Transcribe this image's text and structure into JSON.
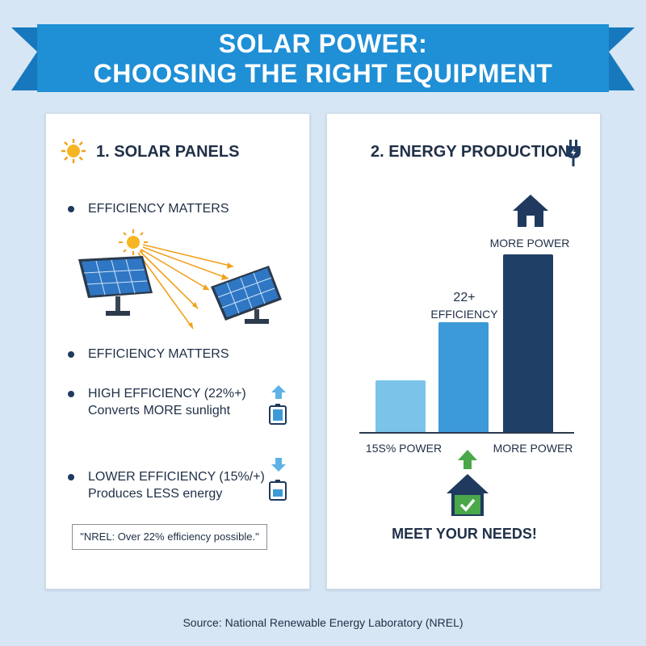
{
  "header": {
    "title_line1": "SOLAR POWER:",
    "title_line2": "CHOOSING THE RIGHT EQUIPMENT",
    "banner_color": "#1f8fd6"
  },
  "left_card": {
    "title": "1. SOLAR PANELS",
    "title_icon": "sun-icon",
    "bullet1": "EFFICIENCY MATTERS",
    "bullet2": "EFFICIENCY MATTERS",
    "bullet3_line1": "HIGH EFFICIENCY (22%+)",
    "bullet3_line2": "Converts MORE sunlight",
    "bullet3_icons": [
      "arrow-up-icon",
      "battery-full-icon"
    ],
    "bullet4_line1": "LOWER EFFICIENCY (15%/+)",
    "bullet4_line2": "Produces LESS energy",
    "bullet4_icons": [
      "arrow-down-icon",
      "battery-low-icon"
    ],
    "quote": "\"NREL: Over 22% efficiency possible.\""
  },
  "right_card": {
    "title": "2. ENERGY PRODUCTION",
    "title_icon": "plug-icon",
    "bars": [
      {
        "level": 0.29,
        "color": "#7cc3ea",
        "label": "15S% POWER"
      },
      {
        "level": 0.62,
        "color": "#3d9ad8",
        "label_top_1": "22+",
        "label_top_2": "EFFICIENCY"
      },
      {
        "level": 1.0,
        "color": "#1f3f66",
        "label_top": "MORE POWER",
        "label": "MORE POWER"
      }
    ],
    "top_icon": "house-icon",
    "bottom_icon": "house-check-icon",
    "footer": "MEET YOUR NEEDS!"
  },
  "source": "Source: National Renewable Energy Laboratory (NREL)"
}
